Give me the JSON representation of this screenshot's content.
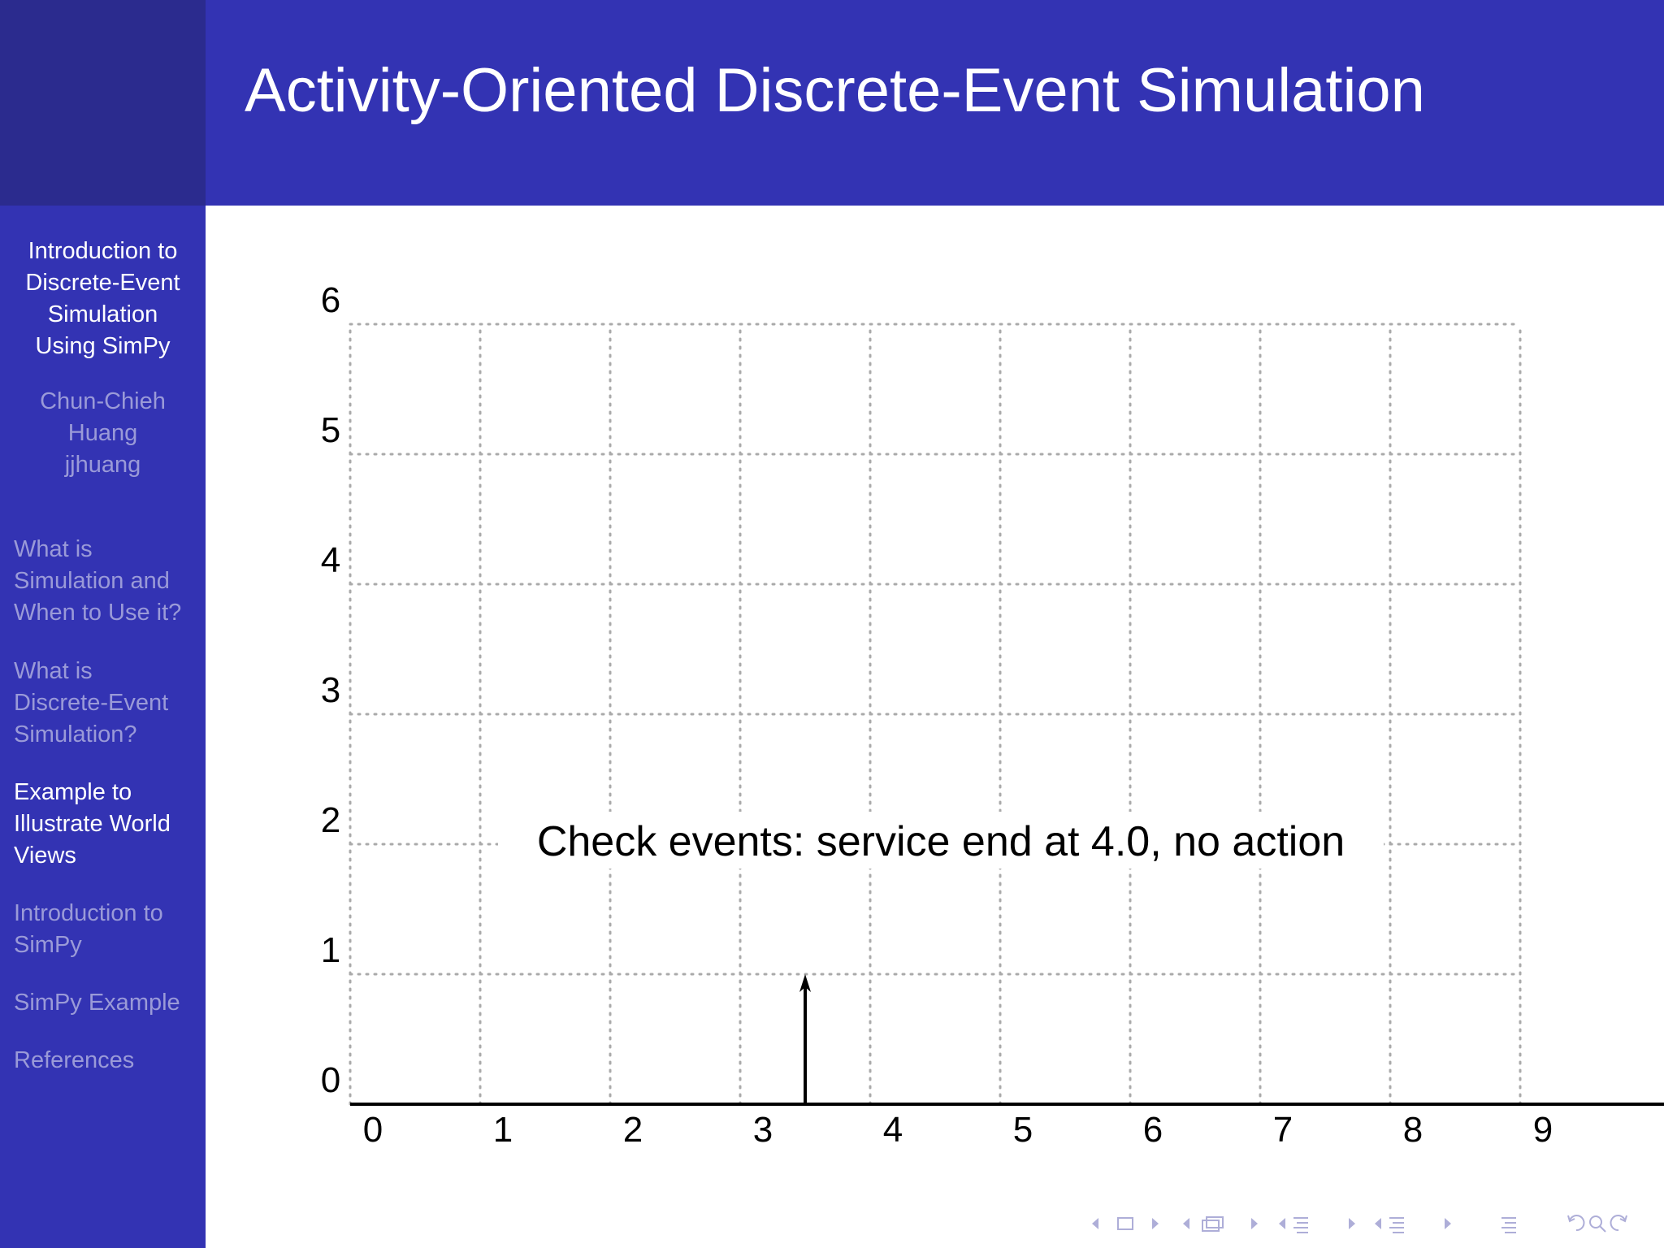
{
  "slide": {
    "title": "Activity-Oriented Discrete-Event Simulation"
  },
  "sidebar": {
    "title_lines": [
      "Introduction to",
      "Discrete-Event",
      "Simulation",
      "Using SimPy"
    ],
    "author_lines": [
      "Chun-Chieh",
      "Huang",
      "jjhuang"
    ],
    "sections": [
      {
        "lines": [
          "What is",
          "Simulation and",
          "When to Use it?"
        ],
        "active": false
      },
      {
        "lines": [
          "What is",
          "Discrete-Event",
          "Simulation?"
        ],
        "active": false
      },
      {
        "lines": [
          "Example to",
          "Illustrate World",
          "Views"
        ],
        "active": true
      },
      {
        "lines": [
          "Introduction to",
          "SimPy"
        ],
        "active": false
      },
      {
        "lines": [
          "SimPy Example"
        ],
        "active": false
      },
      {
        "lines": [
          "References"
        ],
        "active": false
      }
    ],
    "colors": {
      "active": "#ffffff",
      "inactive": "#9a9ad8",
      "background": "#3333b3"
    }
  },
  "colors": {
    "header": "#3333b3",
    "corner": "#2b2b8e",
    "grid": "#aaaaaa",
    "ink": "#000000"
  },
  "chart_data": {
    "type": "timeline",
    "x_ticks": [
      "0",
      "1",
      "2",
      "3",
      "4",
      "5",
      "6",
      "7",
      "8",
      "9"
    ],
    "y_ticks": [
      "0",
      "1",
      "2",
      "3",
      "4",
      "5",
      "6"
    ],
    "xlim": [
      0,
      9
    ],
    "ylim": [
      0,
      6
    ],
    "grid": "dotted",
    "events": [
      {
        "x": 3.5,
        "y": 1
      }
    ],
    "annotation": {
      "text": "Check events: service end at 4.0, no action",
      "x": 3.5,
      "y": 2
    }
  },
  "nav_controls": [
    "prev-icon",
    "frame-icon",
    "next-icon",
    "prev-subsection-icon",
    "subsection-icon",
    "next-subsection-icon",
    "prev-section-icon",
    "section-icon",
    "next-section-icon",
    "prev-slide-icon",
    "slide-list-icon",
    "next-slide-icon",
    "toc-icon",
    "undo-icon",
    "search-icon",
    "redo-icon"
  ]
}
